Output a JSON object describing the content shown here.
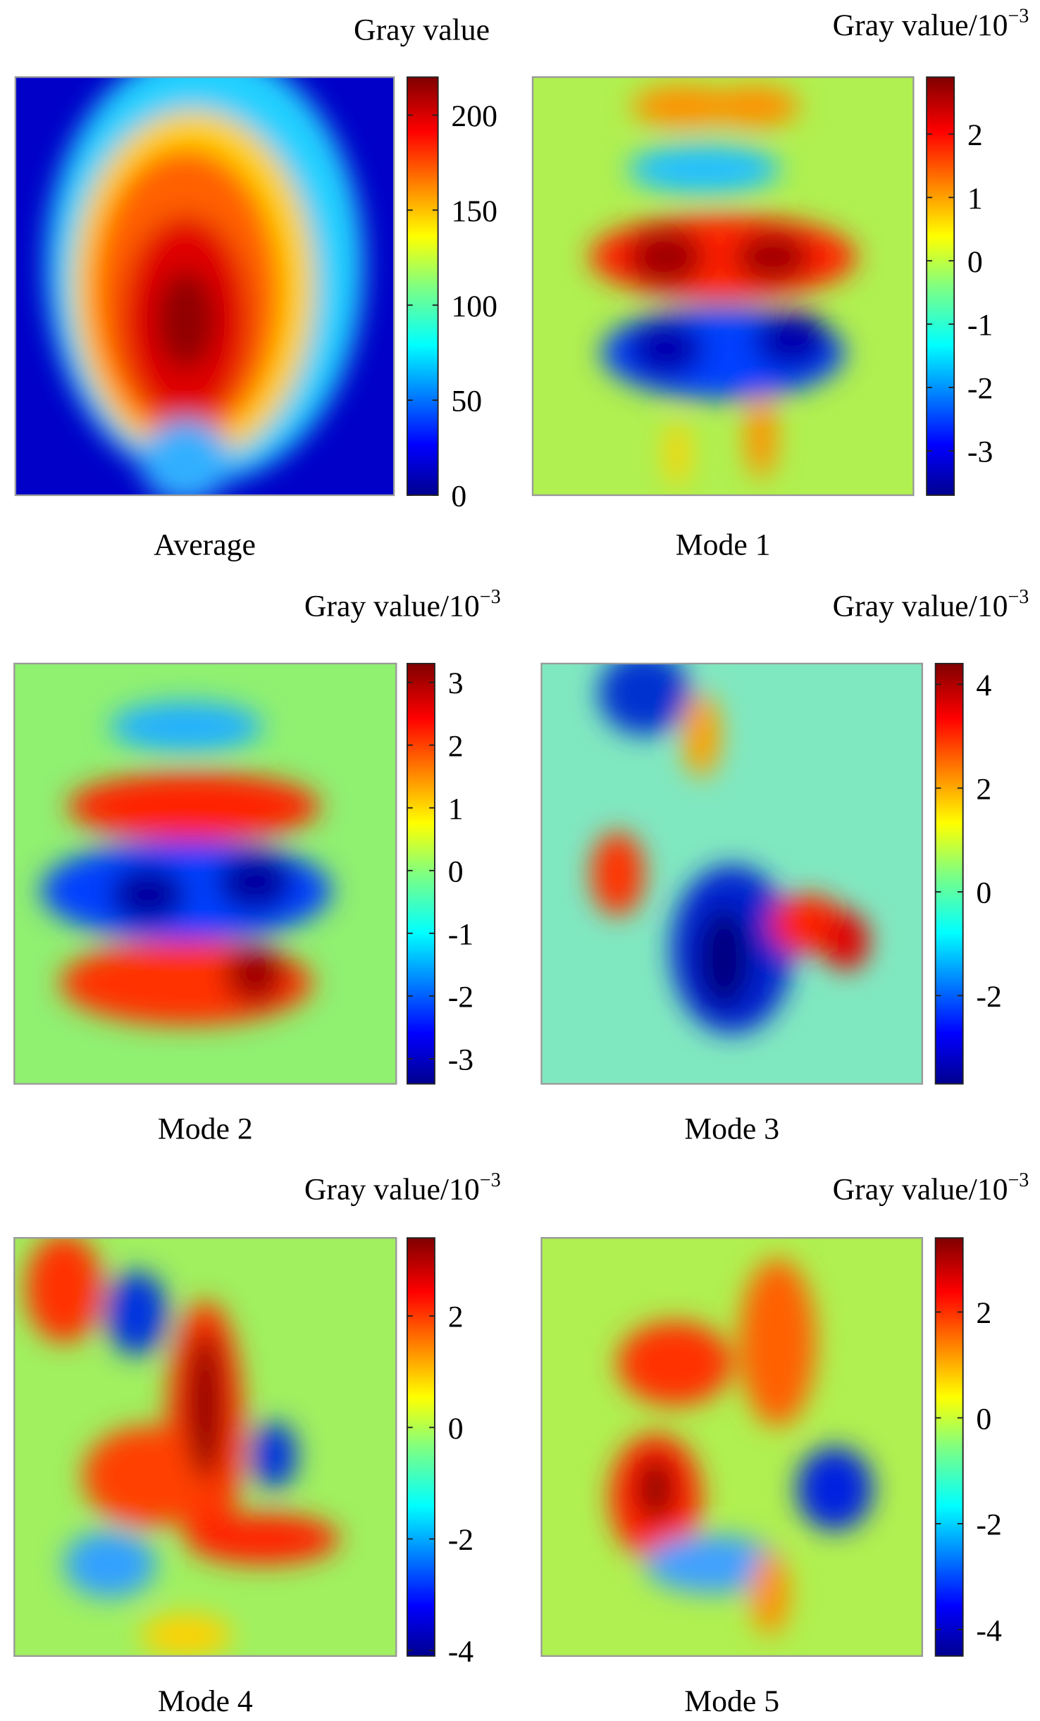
{
  "chart_data": [
    {
      "type": "heatmap",
      "title": "Average",
      "colorbar_label": "Gray value",
      "clim": [
        0,
        220
      ],
      "cticks": [
        0,
        50,
        100,
        150,
        200
      ]
    },
    {
      "type": "heatmap",
      "title": "Mode 1",
      "colorbar_label": "Gray value/10",
      "colorbar_label_exponent": "−3",
      "clim": [
        -3.7,
        2.9
      ],
      "cticks": [
        -3,
        -2,
        -1,
        0,
        1,
        2
      ]
    },
    {
      "type": "heatmap",
      "title": "Mode 2",
      "colorbar_label": "Gray value/10",
      "colorbar_label_exponent": "−3",
      "clim": [
        -3.4,
        3.3
      ],
      "cticks": [
        -3,
        -2,
        -1,
        0,
        1,
        2,
        3
      ]
    },
    {
      "type": "heatmap",
      "title": "Mode 3",
      "colorbar_label": "Gray value/10",
      "colorbar_label_exponent": "−3",
      "clim": [
        -3.7,
        4.4
      ],
      "cticks": [
        -2,
        0,
        2,
        4
      ]
    },
    {
      "type": "heatmap",
      "title": "Mode 4",
      "colorbar_label": "Gray value/10",
      "colorbar_label_exponent": "−3",
      "clim": [
        -4.1,
        3.4
      ],
      "cticks": [
        -4,
        -2,
        0,
        2
      ]
    },
    {
      "type": "heatmap",
      "title": "Mode 5",
      "colorbar_label": "Gray value/10",
      "colorbar_label_exponent": "−3",
      "clim": [
        -4.5,
        3.4
      ],
      "cticks": [
        -4,
        -2,
        0,
        2
      ]
    }
  ]
}
